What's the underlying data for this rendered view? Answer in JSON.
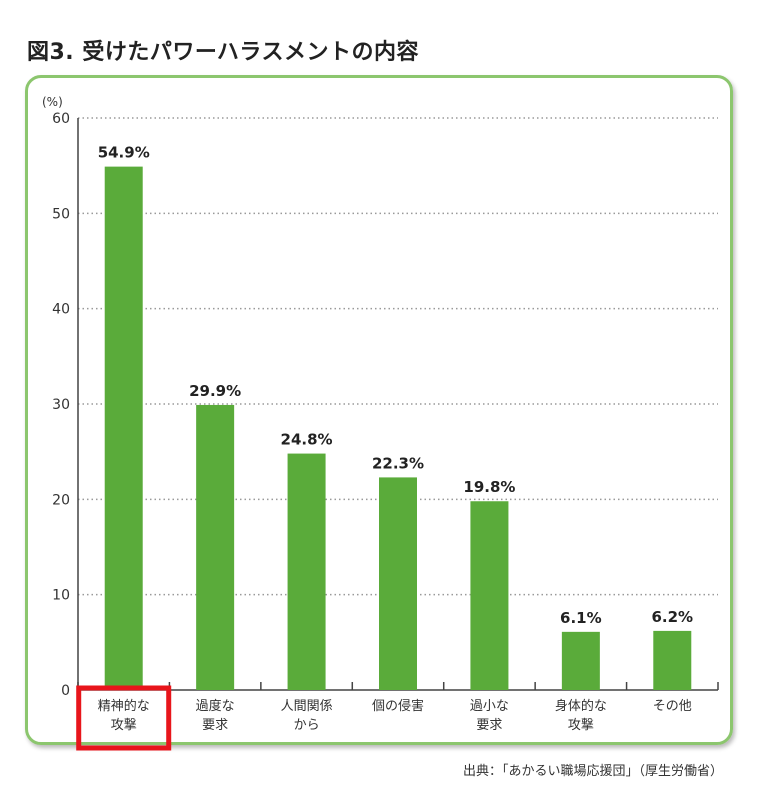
{
  "title": "図3. 受けたパワーハラスメントの内容",
  "source": "出典：「あかるい職場応援団」（厚生労働省）",
  "colors": {
    "bar": "#5aab3a",
    "panel_border": "#8cc66e",
    "highlight": "#e8151b"
  },
  "highlighted_category_index": 0,
  "chart_data": {
    "type": "bar",
    "title": "図3. 受けたパワーハラスメントの内容",
    "ylabel": "(%)",
    "xlabel": "",
    "ylim": [
      0,
      60
    ],
    "yticks": [
      0,
      10,
      20,
      30,
      40,
      50,
      60
    ],
    "grid": true,
    "categories": [
      [
        "精神的な",
        "攻撃"
      ],
      [
        "過度な",
        "要求"
      ],
      [
        "人間関係",
        "から"
      ],
      [
        "個の侵害"
      ],
      [
        "過小な",
        "要求"
      ],
      [
        "身体的な",
        "攻撃"
      ],
      [
        "その他"
      ]
    ],
    "values": [
      54.9,
      29.9,
      24.8,
      22.3,
      19.8,
      6.1,
      6.2
    ],
    "data_labels": [
      "54.9%",
      "29.9%",
      "24.8%",
      "22.3%",
      "19.8%",
      "6.1%",
      "6.2%"
    ]
  }
}
